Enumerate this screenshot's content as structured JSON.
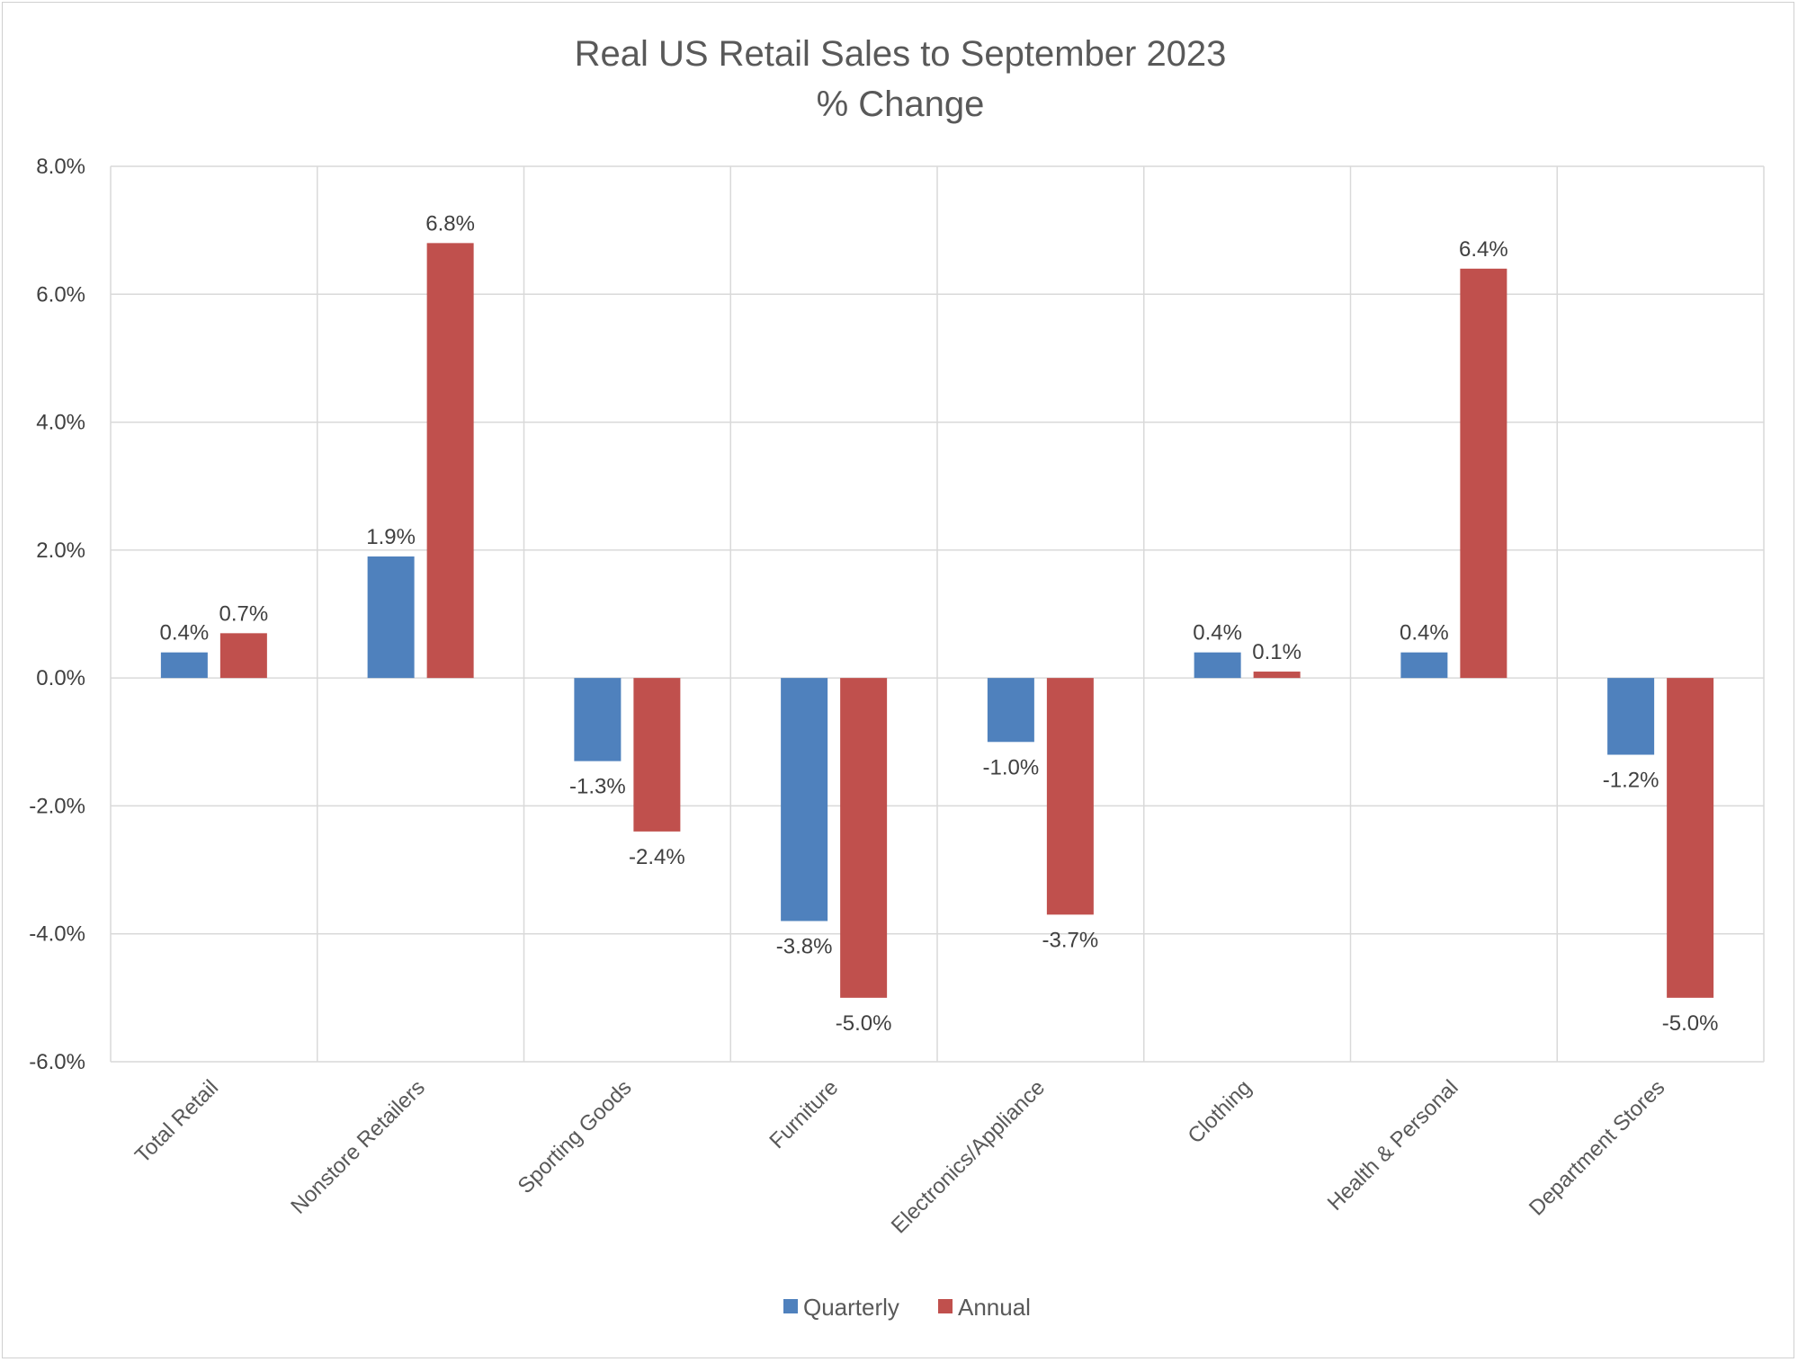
{
  "chart_data": {
    "type": "bar",
    "title": "Real US Retail Sales to September 2023",
    "subtitle": "% Change",
    "categories": [
      "Total Retail",
      "Nonstore Retailers",
      "Sporting Goods",
      "Furniture",
      "Electronics/Appliance",
      "Clothing",
      "Health & Personal",
      "Department Stores"
    ],
    "series": [
      {
        "name": "Quarterly",
        "color": "#4f81bd",
        "values": [
          0.4,
          1.9,
          -1.3,
          -3.8,
          -1.0,
          0.4,
          0.4,
          -1.2
        ],
        "labels": [
          "0.4%",
          "1.9%",
          "-1.3%",
          "-3.8%",
          "-1.0%",
          "0.4%",
          "0.4%",
          "-1.2%"
        ]
      },
      {
        "name": "Annual",
        "color": "#c0504d",
        "values": [
          0.7,
          6.8,
          -2.4,
          -5.0,
          -3.7,
          0.1,
          6.4,
          -5.0
        ],
        "labels": [
          "0.7%",
          "6.8%",
          "-2.4%",
          "-5.0%",
          "-3.7%",
          "0.1%",
          "6.4%",
          "-5.0%"
        ]
      }
    ],
    "y_ticks": [
      "8.0%",
      "6.0%",
      "4.0%",
      "2.0%",
      "0.0%",
      "-2.0%",
      "-4.0%",
      "-6.0%"
    ],
    "ylim": [
      -6,
      8
    ],
    "ystep": 2,
    "grid": true,
    "legend_position": "bottom"
  }
}
